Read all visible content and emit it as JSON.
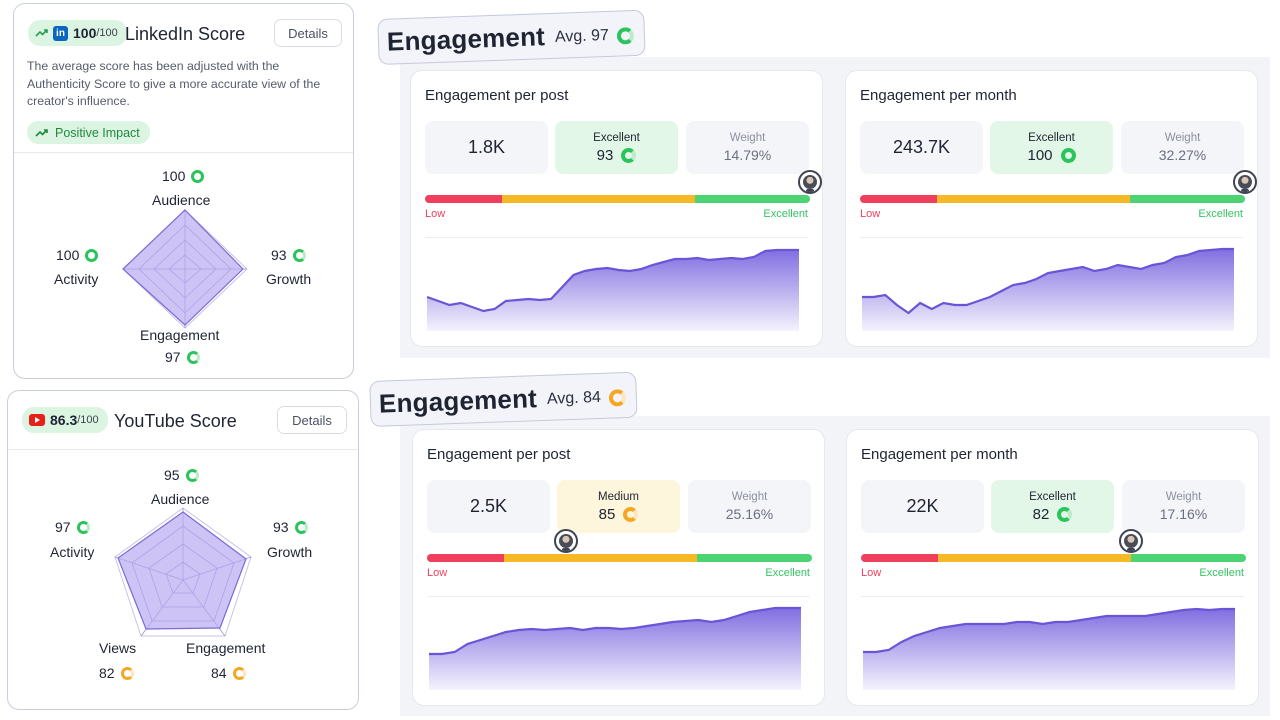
{
  "linkedin_card": {
    "score": "100",
    "score_max": "/100",
    "title": "LinkedIn Score",
    "details_label": "Details",
    "description": "The average score has been adjusted with the Authenticity Score to give a more accurate view of the creator's influence.",
    "impact_label": "Positive Impact",
    "radar": {
      "audience": {
        "label": "Audience",
        "value": "100"
      },
      "activity": {
        "label": "Activity",
        "value": "100"
      },
      "growth": {
        "label": "Growth",
        "value": "93"
      },
      "engagement": {
        "label": "Engagement",
        "value": "97"
      }
    }
  },
  "youtube_card": {
    "score": "86.3",
    "score_max": "/100",
    "title": "YouTube Score",
    "details_label": "Details",
    "radar": {
      "audience": {
        "label": "Audience",
        "value": "95"
      },
      "activity": {
        "label": "Activity",
        "value": "97"
      },
      "growth": {
        "label": "Growth",
        "value": "93"
      },
      "views": {
        "label": "Views",
        "value": "82"
      },
      "engagement": {
        "label": "Engagement",
        "value": "84"
      }
    }
  },
  "engagement_sections": [
    {
      "heading": "Engagement",
      "avg_label": "Avg. 97",
      "panels": [
        {
          "title": "Engagement per post",
          "value": "1.8K",
          "rating_label": "Excellent",
          "rating_value": "93",
          "weight_label": "Weight",
          "weight_value": "14.79%",
          "low_label": "Low",
          "high_label": "Excellent",
          "marker_fraction": 1.0,
          "trend": [
            38,
            34,
            30,
            32,
            28,
            24,
            26,
            34,
            35,
            36,
            35,
            36,
            48,
            60,
            64,
            66,
            67,
            65,
            64,
            66,
            70,
            73,
            76,
            76,
            77,
            75,
            76,
            77,
            76,
            78,
            84,
            85,
            85,
            85
          ]
        },
        {
          "title": "Engagement per month",
          "value": "243.7K",
          "rating_label": "Excellent",
          "rating_value": "100",
          "weight_label": "Weight",
          "weight_value": "32.27%",
          "low_label": "Low",
          "high_label": "Excellent",
          "marker_fraction": 1.0,
          "trend": [
            38,
            38,
            40,
            30,
            22,
            32,
            26,
            32,
            30,
            30,
            34,
            38,
            44,
            50,
            52,
            56,
            62,
            64,
            66,
            68,
            64,
            66,
            70,
            68,
            66,
            70,
            72,
            78,
            80,
            84,
            85,
            86,
            86
          ]
        }
      ]
    },
    {
      "heading": "Engagement",
      "avg_label": "Avg. 84",
      "panels": [
        {
          "title": "Engagement per post",
          "value": "2.5K",
          "rating_label": "Medium",
          "rating_value": "85",
          "weight_label": "Weight",
          "weight_value": "25.16%",
          "low_label": "Low",
          "high_label": "Excellent",
          "marker_fraction": 0.36,
          "trend": [
            40,
            40,
            42,
            50,
            54,
            58,
            62,
            64,
            65,
            64,
            65,
            66,
            64,
            66,
            66,
            65,
            66,
            68,
            70,
            72,
            73,
            74,
            72,
            74,
            78,
            82,
            84,
            86,
            86,
            86
          ]
        },
        {
          "title": "Engagement per month",
          "value": "22K",
          "rating_label": "Excellent",
          "rating_value": "82",
          "weight_label": "Weight",
          "weight_value": "17.16%",
          "low_label": "Low",
          "high_label": "Excellent",
          "marker_fraction": 0.7,
          "trend": [
            42,
            42,
            44,
            52,
            58,
            62,
            66,
            68,
            70,
            70,
            70,
            70,
            72,
            72,
            70,
            72,
            72,
            74,
            76,
            78,
            78,
            78,
            78,
            80,
            82,
            84,
            85,
            84,
            85,
            85
          ]
        }
      ]
    }
  ],
  "colors": {
    "excellent_green": "#2bc35c",
    "medium_orange": "#f5a623",
    "low_red": "#ef3f5c",
    "chart_purple": "#6a55d8",
    "radar_fill": "#b8aaf0"
  }
}
